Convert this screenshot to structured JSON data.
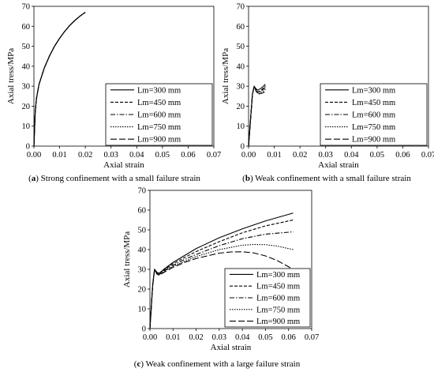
{
  "chart_data": [
    {
      "type": "line",
      "panel": "a",
      "caption_letter": "a",
      "caption_text": "Strong confinement with a small failure strain",
      "xlabel": "Axial strain",
      "ylabel": "Axial tress/MPa",
      "xlim": [
        0,
        0.07
      ],
      "ylim": [
        0,
        70
      ],
      "x_ticks": [
        "0.00",
        "0.01",
        "0.02",
        "0.03",
        "0.04",
        "0.05",
        "0.06",
        "0.07"
      ],
      "y_ticks": [
        "0",
        "10",
        "20",
        "30",
        "40",
        "50",
        "60",
        "70"
      ],
      "grid": false,
      "legend_position": "bottom-right",
      "series": [
        {
          "name": "Lm=300 mm",
          "dash": "solid",
          "x": [
            0,
            0.0005,
            0.001,
            0.002,
            0.004,
            0.006,
            0.008,
            0.01,
            0.012,
            0.014,
            0.016,
            0.018,
            0.02
          ],
          "y": [
            0,
            17,
            24,
            31,
            39,
            45,
            50,
            54,
            57.5,
            60.5,
            63,
            65.2,
            67
          ]
        },
        {
          "name": "Lm=450 mm",
          "dash": "dash",
          "x": [
            0,
            0.0005,
            0.001,
            0.002,
            0.004,
            0.006,
            0.008,
            0.01,
            0.012,
            0.014,
            0.016,
            0.018,
            0.02
          ],
          "y": [
            0,
            17,
            24,
            31,
            39,
            45,
            50,
            54,
            57.5,
            60.5,
            63,
            65.2,
            67
          ]
        },
        {
          "name": "Lm=600 mm",
          "dash": "dashdot",
          "x": [
            0,
            0.0005,
            0.001,
            0.002,
            0.004,
            0.006,
            0.008,
            0.01,
            0.012,
            0.014,
            0.016,
            0.018,
            0.02
          ],
          "y": [
            0,
            17,
            24,
            31,
            39,
            45,
            50,
            54,
            57.5,
            60.5,
            63,
            65.2,
            67
          ]
        },
        {
          "name": "Lm=750 mm",
          "dash": "dot",
          "x": [
            0,
            0.0005,
            0.001,
            0.002,
            0.004,
            0.006,
            0.008,
            0.01,
            0.012,
            0.014,
            0.016,
            0.018,
            0.02
          ],
          "y": [
            0,
            17,
            24,
            31,
            39,
            45,
            50,
            54,
            57.5,
            60.5,
            63,
            65.2,
            67
          ]
        },
        {
          "name": "Lm=900 mm",
          "dash": "longdash",
          "x": [
            0,
            0.0005,
            0.001,
            0.002,
            0.004,
            0.006,
            0.008,
            0.01,
            0.012,
            0.014,
            0.016,
            0.018,
            0.02
          ],
          "y": [
            0,
            17,
            24,
            31,
            39,
            45,
            50,
            54,
            57.5,
            60.5,
            63,
            65.2,
            67
          ]
        }
      ]
    },
    {
      "type": "line",
      "panel": "b",
      "caption_letter": "b",
      "caption_text": "Weak confinement with a small failure strain",
      "xlabel": "Axial strain",
      "ylabel": "Axial tress/MPa",
      "xlim": [
        0,
        0.07
      ],
      "ylim": [
        0,
        70
      ],
      "x_ticks": [
        "0.00",
        "0.01",
        "0.02",
        "0.03",
        "0.04",
        "0.05",
        "0.06",
        "0.07"
      ],
      "y_ticks": [
        "0",
        "10",
        "20",
        "30",
        "40",
        "50",
        "60",
        "70"
      ],
      "grid": false,
      "legend_position": "bottom-right",
      "series": [
        {
          "name": "Lm=300 mm",
          "dash": "solid",
          "x": [
            0,
            0.0015,
            0.0022,
            0.0027,
            0.0035,
            0.0045,
            0.0055,
            0.0065
          ],
          "y": [
            0,
            26,
            30,
            29,
            28,
            28.7,
            29.6,
            31
          ]
        },
        {
          "name": "Lm=450 mm",
          "dash": "dash",
          "x": [
            0,
            0.0015,
            0.0022,
            0.0028,
            0.0036,
            0.0046,
            0.0056,
            0.0066
          ],
          "y": [
            0,
            26,
            30,
            28.3,
            27.1,
            27.8,
            28.8,
            30.2
          ]
        },
        {
          "name": "Lm=600 mm",
          "dash": "dashdot",
          "x": [
            0,
            0.0015,
            0.0022,
            0.0028,
            0.0036,
            0.0046,
            0.0056,
            0.0066
          ],
          "y": [
            0,
            26,
            30,
            28,
            26.6,
            27.4,
            28.3,
            29.5
          ]
        },
        {
          "name": "Lm=750 mm",
          "dash": "dot",
          "x": [
            0,
            0.0015,
            0.0022,
            0.003,
            0.0038,
            0.0048,
            0.0058,
            0.0066
          ],
          "y": [
            0,
            26,
            30,
            27.6,
            26.4,
            26.9,
            27.6,
            28.5
          ]
        },
        {
          "name": "Lm=900 mm",
          "dash": "longdash",
          "x": [
            0,
            0.0015,
            0.0022,
            0.003,
            0.0038,
            0.0048,
            0.0058,
            0.0066
          ],
          "y": [
            0,
            26,
            30,
            27.3,
            26.1,
            26.3,
            26.8,
            27.3
          ]
        }
      ]
    },
    {
      "type": "line",
      "panel": "c",
      "caption_letter": "c",
      "caption_text": "Weak confinement with a large failure strain",
      "xlabel": "Axial strain",
      "ylabel": "Axial tress/MPa",
      "xlim": [
        0,
        0.07
      ],
      "ylim": [
        0,
        70
      ],
      "x_ticks": [
        "0.00",
        "0.01",
        "0.02",
        "0.03",
        "0.04",
        "0.05",
        "0.06",
        "0.07"
      ],
      "y_ticks": [
        "0",
        "10",
        "20",
        "30",
        "40",
        "50",
        "60",
        "70"
      ],
      "grid": false,
      "legend_position": "bottom-right",
      "series": [
        {
          "name": "Lm=300 mm",
          "dash": "solid",
          "x": [
            0,
            0.0012,
            0.002,
            0.003,
            0.004,
            0.006,
            0.01,
            0.015,
            0.02,
            0.03,
            0.04,
            0.05,
            0.062
          ],
          "y": [
            0,
            22,
            30,
            28.5,
            28,
            30,
            33.5,
            37,
            40.5,
            46,
            50.5,
            54.5,
            58.5
          ]
        },
        {
          "name": "Lm=450 mm",
          "dash": "dash",
          "x": [
            0,
            0.0012,
            0.002,
            0.003,
            0.004,
            0.006,
            0.01,
            0.015,
            0.02,
            0.03,
            0.04,
            0.05,
            0.062
          ],
          "y": [
            0,
            22,
            30,
            28.2,
            27.7,
            29.5,
            32.8,
            36,
            39,
            44,
            48.5,
            52,
            55
          ]
        },
        {
          "name": "Lm=600 mm",
          "dash": "dashdot",
          "x": [
            0,
            0.0012,
            0.002,
            0.003,
            0.004,
            0.006,
            0.01,
            0.015,
            0.02,
            0.03,
            0.04,
            0.05,
            0.062
          ],
          "y": [
            0,
            22,
            30,
            28,
            27.4,
            29.2,
            32,
            35,
            37.5,
            42,
            45.5,
            47.8,
            49
          ]
        },
        {
          "name": "Lm=750 mm",
          "dash": "dot",
          "x": [
            0,
            0.0012,
            0.002,
            0.003,
            0.004,
            0.006,
            0.01,
            0.015,
            0.02,
            0.03,
            0.04,
            0.045,
            0.05,
            0.055,
            0.062
          ],
          "y": [
            0,
            22,
            30,
            27.8,
            27.2,
            28.8,
            31.5,
            34,
            36.5,
            40,
            42.2,
            42.6,
            42.5,
            41.8,
            40
          ]
        },
        {
          "name": "Lm=900 mm",
          "dash": "longdash",
          "x": [
            0,
            0.0012,
            0.002,
            0.003,
            0.004,
            0.006,
            0.01,
            0.015,
            0.02,
            0.03,
            0.035,
            0.04,
            0.045,
            0.05,
            0.055,
            0.062
          ],
          "y": [
            0,
            22,
            30,
            27.6,
            27,
            28.4,
            31,
            33.5,
            35.5,
            38.2,
            38.8,
            38.9,
            38.3,
            36.8,
            34.5,
            30
          ]
        }
      ]
    }
  ]
}
